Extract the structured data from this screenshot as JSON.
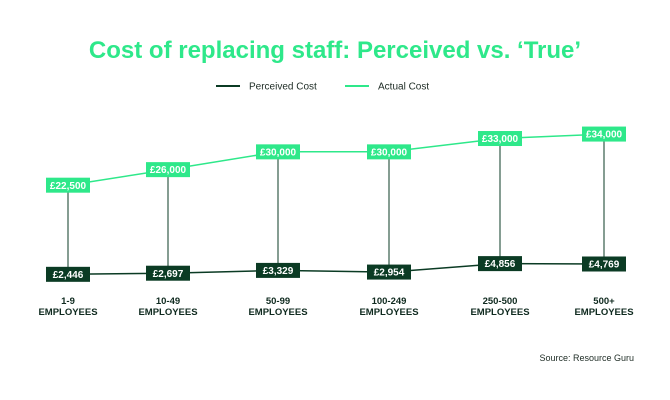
{
  "colors": {
    "perceived": "#0b3b24",
    "actual": "#2ee88a",
    "title": "#2ee88a",
    "connector": "#0b3b24",
    "label_text": "#ffffff"
  },
  "chart_data": {
    "type": "line",
    "title": "Cost of replacing staff: Perceived vs. ‘True’",
    "categories": [
      [
        "1-9",
        "EMPLOYEES"
      ],
      [
        "10-49",
        "EMPLOYEES"
      ],
      [
        "50-99",
        "EMPLOYEES"
      ],
      [
        "100-249",
        "EMPLOYEES"
      ],
      [
        "250-500",
        "EMPLOYEES"
      ],
      [
        "500+",
        "EMPLOYEES"
      ]
    ],
    "series": [
      {
        "name": "Perceived Cost",
        "values": [
          2446,
          2697,
          3329,
          2954,
          4856,
          4769
        ],
        "labels": [
          "£2,446",
          "£2,697",
          "£3,329",
          "£2,954",
          "£4,856",
          "£4,769"
        ]
      },
      {
        "name": "Actual Cost",
        "values": [
          22500,
          26000,
          30000,
          30000,
          33000,
          34000
        ],
        "labels": [
          "£22,500",
          "£26,000",
          "£30,000",
          "£30,000",
          "£33,000",
          "£34,000"
        ]
      }
    ],
    "legend_position": "top-center",
    "grid": false,
    "source": "Source: Resource Guru"
  }
}
